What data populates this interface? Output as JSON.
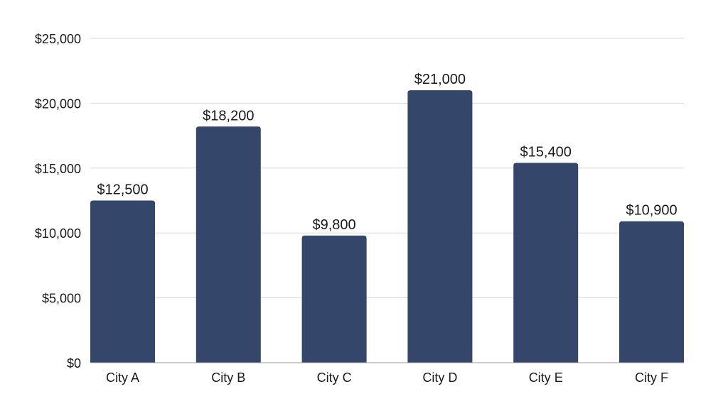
{
  "chart_data": {
    "type": "bar",
    "categories": [
      "City A",
      "City B",
      "City C",
      "City D",
      "City E",
      "City F"
    ],
    "values": [
      12500,
      18200,
      9800,
      21000,
      15400,
      10900
    ],
    "value_labels": [
      "$12,500",
      "$18,200",
      "$9,800",
      "$21,000",
      "$15,400",
      "$10,900"
    ],
    "title": "",
    "xlabel": "",
    "ylabel": "",
    "ylim": [
      0,
      25000
    ],
    "yticks": [
      0,
      5000,
      10000,
      15000,
      20000,
      25000
    ],
    "ytick_labels": [
      "$0",
      "$5,000",
      "$10,000",
      "$15,000",
      "$20,000",
      "$25,000"
    ],
    "grid": true,
    "legend": "none",
    "bar_color": "#34476b"
  }
}
